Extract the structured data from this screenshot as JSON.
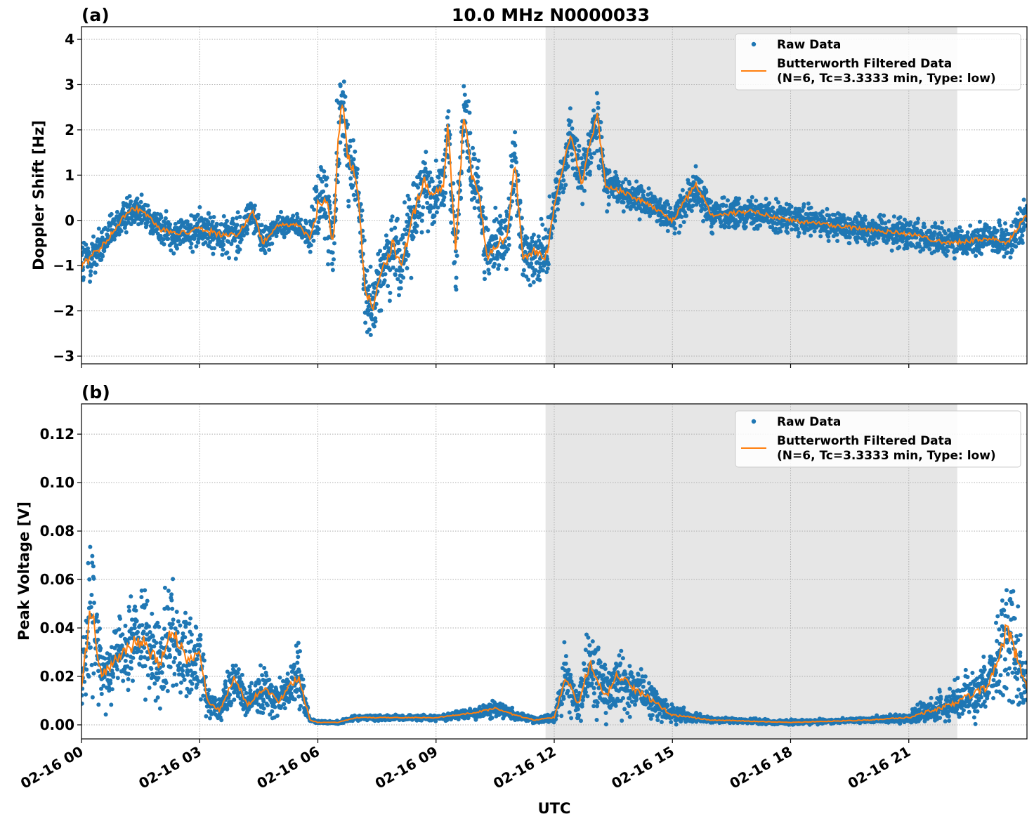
{
  "title": "10.0 MHz N0000033",
  "xlabel": "UTC",
  "x_tick_labels": [
    "02-16 00",
    "02-16 03",
    "02-16 06",
    "02-16 09",
    "02-16 12",
    "02-16 15",
    "02-16 18",
    "02-16 21"
  ],
  "x_ticks_hours": [
    0,
    3,
    6,
    9,
    12,
    15,
    18,
    21
  ],
  "xlim_hours": [
    0,
    24
  ],
  "shaded_span_hours": [
    11.78,
    22.23
  ],
  "colors": {
    "raw": "#1f77b4",
    "filtered": "#ff7f0e",
    "shade": "#e6e6e6",
    "grid": "#b0b0b0"
  },
  "legend": {
    "raw": "Raw Data",
    "filtered_line1": "Butterworth Filtered Data",
    "filtered_line2": "(N=6, Tc=3.3333 min, Type: low)",
    "placement": "top-right"
  },
  "chart_data": [
    {
      "type": "scatter+line",
      "panel_label": "(a)",
      "ylabel": "Doppler Shift [Hz]",
      "ylim": [
        -3.17,
        4.28
      ],
      "y_ticks": [
        -3,
        -2,
        -1,
        0,
        1,
        2,
        3,
        4
      ],
      "y_tick_labels": [
        "−3",
        "−2",
        "−1",
        "0",
        "1",
        "2",
        "3",
        "4"
      ],
      "grid": true,
      "series": [
        {
          "name": "Butterworth Filtered Data",
          "role": "filtered",
          "x": [
            0,
            0.5,
            1.0,
            1.3,
            1.7,
            2.0,
            2.5,
            3.0,
            3.5,
            4.0,
            4.35,
            4.6,
            5.0,
            5.5,
            5.8,
            6.0,
            6.2,
            6.4,
            6.5,
            6.6,
            6.75,
            7.0,
            7.2,
            7.4,
            7.6,
            7.9,
            8.1,
            8.4,
            8.7,
            8.9,
            9.2,
            9.3,
            9.5,
            9.7,
            9.9,
            10.1,
            10.3,
            10.6,
            10.8,
            11.0,
            11.2,
            11.5,
            11.8,
            12.0,
            12.4,
            12.7,
            12.9,
            13.1,
            13.3,
            13.8,
            14.5,
            15.0,
            15.6,
            16.0,
            17.0,
            18.0,
            19.0,
            20.0,
            21.0,
            22.0,
            23.0,
            23.5,
            24.0
          ],
          "y": [
            -1.0,
            -0.6,
            0.0,
            0.3,
            0.1,
            -0.2,
            -0.3,
            -0.2,
            -0.3,
            -0.3,
            0.2,
            -0.5,
            -0.1,
            -0.1,
            -0.4,
            0.3,
            0.5,
            -0.5,
            1.5,
            2.8,
            1.5,
            0.8,
            -1.5,
            -1.9,
            -1.2,
            -0.5,
            -1.0,
            0.0,
            0.9,
            0.5,
            0.8,
            2.1,
            -0.8,
            2.4,
            1.0,
            0.5,
            -0.8,
            -0.5,
            -0.3,
            1.3,
            -0.8,
            -0.7,
            -0.8,
            0.3,
            1.9,
            0.8,
            1.7,
            2.3,
            0.8,
            0.6,
            0.3,
            0.0,
            0.8,
            0.1,
            0.2,
            0.0,
            -0.1,
            -0.2,
            -0.3,
            -0.5,
            -0.4,
            -0.5,
            0.1
          ]
        },
        {
          "name": "Raw Data",
          "role": "raw",
          "spread_about_filtered": [
            0.6,
            0.4,
            0.35,
            0.35,
            0.3,
            0.3,
            0.35,
            0.4,
            0.4,
            0.4,
            0.3,
            0.35,
            0.2,
            0.2,
            0.3,
            0.8,
            1.0,
            1.0,
            1.0,
            0.9,
            0.8,
            0.8,
            0.7,
            0.7,
            0.6,
            0.8,
            0.7,
            0.8,
            0.7,
            0.6,
            0.6,
            0.8,
            0.8,
            0.8,
            0.7,
            0.6,
            0.6,
            0.6,
            0.7,
            0.8,
            0.6,
            0.6,
            0.7,
            0.5,
            0.6,
            0.5,
            0.6,
            0.7,
            0.4,
            0.3,
            0.3,
            0.3,
            0.4,
            0.3,
            0.3,
            0.3,
            0.3,
            0.3,
            0.3,
            0.3,
            0.3,
            0.35,
            0.4
          ]
        }
      ]
    },
    {
      "type": "scatter+line",
      "panel_label": "(b)",
      "ylabel": "Peak Voltage [V]",
      "ylim": [
        -0.0058,
        0.1325
      ],
      "y_ticks": [
        0,
        0.02,
        0.04,
        0.06,
        0.08,
        0.1,
        0.12
      ],
      "y_tick_labels": [
        "0.00",
        "0.02",
        "0.04",
        "0.06",
        "0.08",
        "0.10",
        "0.12"
      ],
      "grid": true,
      "series": [
        {
          "name": "Butterworth Filtered Data",
          "role": "filtered",
          "x": [
            0,
            0.25,
            0.5,
            1.0,
            1.5,
            2.0,
            2.3,
            2.7,
            3.0,
            3.2,
            3.5,
            3.9,
            4.2,
            4.6,
            5.0,
            5.5,
            5.8,
            6.0,
            6.5,
            7.0,
            8.0,
            9.0,
            10.0,
            10.5,
            11.0,
            11.5,
            12.0,
            12.3,
            12.6,
            12.9,
            13.3,
            13.6,
            14.0,
            14.5,
            15.0,
            16.0,
            18.0,
            20.0,
            21.0,
            22.0,
            22.5,
            23.0,
            23.5,
            24.0
          ],
          "y": [
            0.015,
            0.05,
            0.02,
            0.03,
            0.035,
            0.025,
            0.04,
            0.025,
            0.03,
            0.01,
            0.006,
            0.02,
            0.008,
            0.015,
            0.01,
            0.02,
            0.002,
            0.001,
            0.001,
            0.003,
            0.003,
            0.003,
            0.005,
            0.007,
            0.004,
            0.002,
            0.003,
            0.02,
            0.008,
            0.025,
            0.012,
            0.02,
            0.015,
            0.01,
            0.004,
            0.002,
            0.001,
            0.002,
            0.003,
            0.008,
            0.012,
            0.015,
            0.04,
            0.015
          ]
        },
        {
          "name": "Raw Data",
          "role": "raw",
          "spread_about_filtered": [
            0.01,
            0.03,
            0.012,
            0.015,
            0.02,
            0.015,
            0.02,
            0.015,
            0.015,
            0.005,
            0.004,
            0.01,
            0.005,
            0.008,
            0.006,
            0.012,
            0.001,
            0.0005,
            0.0005,
            0.001,
            0.001,
            0.001,
            0.002,
            0.003,
            0.002,
            0.001,
            0.002,
            0.012,
            0.005,
            0.015,
            0.01,
            0.012,
            0.01,
            0.007,
            0.003,
            0.001,
            0.0008,
            0.001,
            0.002,
            0.006,
            0.01,
            0.01,
            0.025,
            0.01
          ]
        }
      ]
    }
  ]
}
